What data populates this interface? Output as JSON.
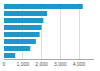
{
  "chart_data": {
    "type": "bar",
    "orientation": "horizontal",
    "categories": [
      null,
      null,
      null,
      null,
      null,
      null,
      null,
      null
    ],
    "values": [
      4200,
      2300,
      2100,
      2000,
      1900,
      1700,
      1400,
      600
    ],
    "color": "#2196c9",
    "xlim": [
      0,
      4800
    ],
    "xticks": [
      0,
      {
        "value": 1000,
        "label": "1,000"
      },
      {
        "value": 2000,
        "label": "2,000"
      },
      {
        "value": 3000,
        "label": "3,000"
      },
      {
        "value": 4000,
        "label": "4,000"
      }
    ],
    "grid": true,
    "tick_labels": "x"
  }
}
